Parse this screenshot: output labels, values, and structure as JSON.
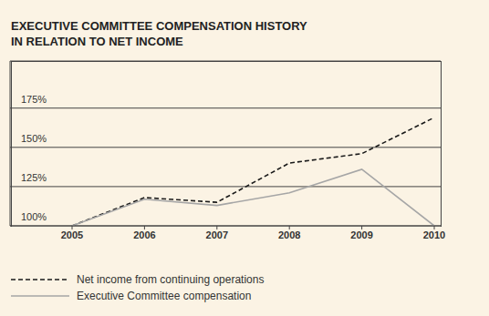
{
  "chart_data": {
    "type": "line",
    "title": "EXECUTIVE COMMITTEE COMPENSATION HISTORY\nIN RELATION TO NET INCOME",
    "categories": [
      "2005",
      "2006",
      "2007",
      "2008",
      "2009",
      "2010"
    ],
    "series": [
      {
        "name": "Net income from continuing operations",
        "color": "#1a1a1a",
        "line_style": "dashed",
        "marker": "none",
        "values": [
          100,
          118,
          115,
          140,
          146,
          169
        ]
      },
      {
        "name": "Executive Committee compensation",
        "color": "#a6a6a6",
        "line_style": "solid",
        "marker": "none",
        "values": [
          100,
          117,
          113,
          121,
          136,
          100
        ]
      }
    ],
    "ylim": [
      100,
      205
    ],
    "yticks": [
      {
        "value": 100,
        "label": "100%"
      },
      {
        "value": 125,
        "label": "125%"
      },
      {
        "value": 150,
        "label": "150%"
      },
      {
        "value": 175,
        "label": "175%"
      }
    ],
    "grid": true,
    "legend": "bottom left"
  }
}
